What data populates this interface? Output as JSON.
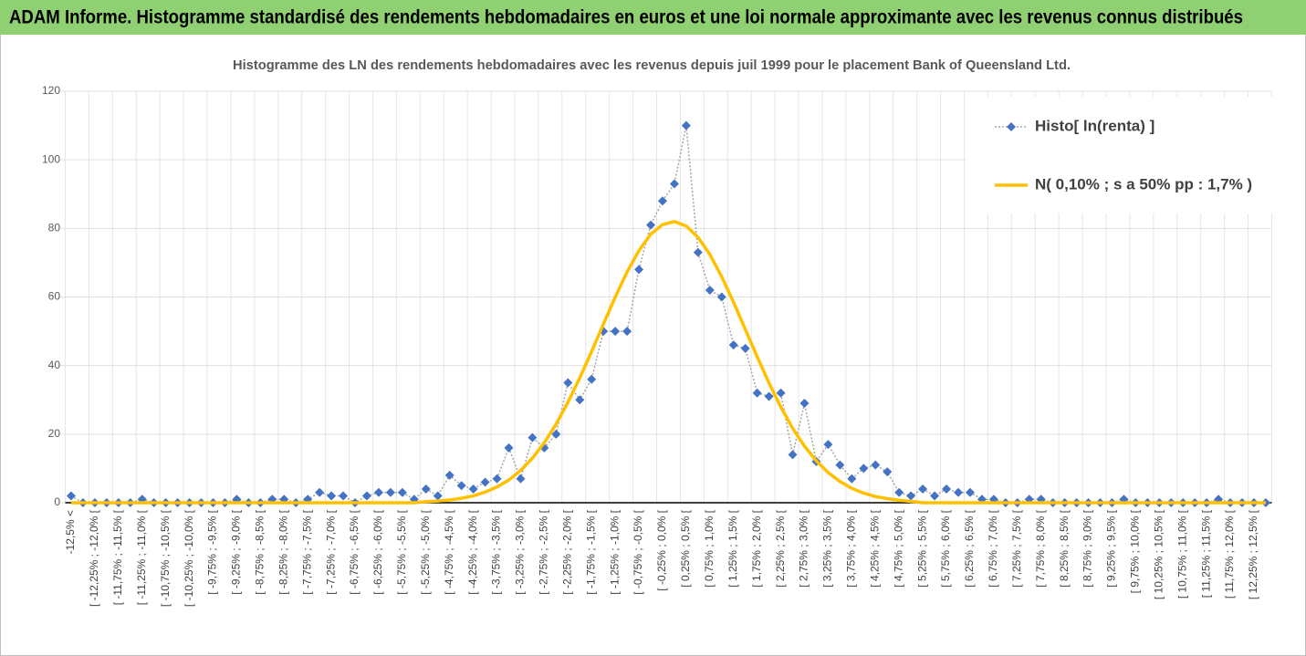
{
  "chart_data": {
    "type": "line",
    "title": "ADAM Informe. Histogramme standardisé des rendements hebdomadaires en euros et une loi normale approximante avec les revenus connus distribués",
    "subtitle": "Histogramme des LN des rendements hebdomadaires avec les revenus depuis juil 1999 pour le placement Bank of Queensland Ltd.",
    "categories": [
      "-12,5% <",
      null,
      "[ -12,25% ; -12,0% [",
      null,
      "[ -11,75% ; -11,5% [",
      null,
      "[ -11,25% ; -11,0% [",
      null,
      "[ -10,75% ; -10,5% [",
      null,
      "[ -10,25% ; -10,0% [",
      null,
      "[ -9,75% ; -9,5% [",
      null,
      "[ -9,25% ; -9,0% [",
      null,
      "[ -8,75% ; -8,5% [",
      null,
      "[ -8,25% ; -8,0% [",
      null,
      "[ -7,75% ; -7,5% [",
      null,
      "[ -7,25% ; -7,0% [",
      null,
      "[ -6,75% ; -6,5% [",
      null,
      "[ -6,25% ; -6,0% [",
      null,
      "[ -5,75% ; -5,5% [",
      null,
      "[ -5,25% ; -5,0% [",
      null,
      "[ -4,75% ; -4,5% [",
      null,
      "[ -4,25% ; -4,0% [",
      null,
      "[ -3,75% ; -3,5% [",
      null,
      "[ -3,25% ; -3,0% [",
      null,
      "[ -2,75% ; -2,5% [",
      null,
      "[ -2,25% ; -2,0% [",
      null,
      "[ -1,75% ; -1,5% [",
      null,
      "[ -1,25% ; -1,0% [",
      null,
      "[ -0,75% ; -0,5% [",
      null,
      "[ -0,25% ; 0,0% [",
      null,
      "[ 0,25% ; 0,5% [",
      null,
      "[ 0,75% ; 1,0% [",
      null,
      "[ 1,25% ; 1,5% [",
      null,
      "[ 1,75% ; 2,0% [",
      null,
      "[ 2,25% ; 2,5% [",
      null,
      "[ 2,75% ; 3,0% [",
      null,
      "[ 3,25% ; 3,5% [",
      null,
      "[ 3,75% ; 4,0% [",
      null,
      "[ 4,25% ; 4,5% [",
      null,
      "[ 4,75% ; 5,0% [",
      null,
      "[ 5,25% ; 5,5% [",
      null,
      "[ 5,75% ; 6,0% [",
      null,
      "[ 6,25% ; 6,5% [",
      null,
      "[ 6,75% ; 7,0% [",
      null,
      "[ 7,25% ; 7,5% [",
      null,
      "[ 7,75% ; 8,0% [",
      null,
      "[ 8,25% ; 8,5% [",
      null,
      "[ 8,75% ; 9,0% [",
      null,
      "[ 9,25% ; 9,5% [",
      null,
      "[ 9,75% ; 10,0% [",
      null,
      "[ 10,25% ; 10,5% [",
      null,
      "[ 10,75% ; 11,0% [",
      null,
      "[ 11,25% ; 11,5% [",
      null,
      "[ 11,75% ; 12,0% [",
      null,
      "[ 12,25% ; 12,5% [",
      null
    ],
    "series": [
      {
        "name": "Histo[ ln(renta) ]",
        "color": "#4472c4",
        "line_color": "#a5a5a5",
        "line_style": "dotted",
        "marker": "diamond",
        "values": [
          2,
          0,
          0,
          0,
          0,
          0,
          1,
          0,
          0,
          0,
          0,
          0,
          0,
          0,
          1,
          0,
          0,
          1,
          1,
          0,
          1,
          3,
          2,
          2,
          0,
          2,
          3,
          3,
          3,
          1,
          4,
          2,
          8,
          5,
          4,
          6,
          7,
          16,
          7,
          19,
          16,
          20,
          35,
          30,
          36,
          50,
          50,
          50,
          68,
          81,
          88,
          93,
          110,
          73,
          62,
          60,
          46,
          45,
          32,
          31,
          32,
          14,
          29,
          12,
          17,
          11,
          7,
          10,
          11,
          9,
          3,
          2,
          4,
          2,
          4,
          3,
          3,
          1,
          1,
          0,
          0,
          1,
          1,
          0,
          0,
          0,
          0,
          0,
          0,
          1,
          0,
          0,
          0,
          0,
          0,
          0,
          0,
          1,
          0,
          0,
          0,
          0
        ]
      },
      {
        "name": "N( 0,10% ; s a 50% pp : 1,7% )",
        "color": "#ffc000",
        "line_style": "solid",
        "values": [
          0,
          0,
          0,
          0,
          0,
          0,
          0,
          0,
          0,
          0,
          0,
          0,
          0,
          0,
          0,
          0,
          0,
          0,
          0,
          0,
          0,
          0,
          0,
          0,
          0,
          0,
          0,
          0,
          0,
          0,
          0.3,
          0.5,
          0.8,
          1.3,
          2.0,
          3.1,
          4.6,
          6.6,
          9.4,
          13.0,
          17.5,
          22.9,
          29.3,
          36.4,
          44.1,
          52.1,
          60.0,
          67.3,
          73.5,
          78.3,
          81.1,
          82.0,
          80.7,
          77.4,
          72.4,
          65.9,
          58.5,
          50.5,
          42.6,
          34.9,
          27.9,
          21.7,
          16.5,
          12.2,
          8.8,
          6.2,
          4.2,
          2.8,
          1.8,
          1.2,
          0.7,
          0.4,
          0,
          0,
          0,
          0,
          0,
          0,
          0,
          0,
          0,
          0,
          0,
          0,
          0,
          0,
          0,
          0,
          0,
          0,
          0,
          0,
          0,
          0,
          0,
          0,
          0,
          0,
          0,
          0,
          0,
          0
        ]
      }
    ],
    "ylim": [
      0,
      120
    ],
    "yticks": [
      0,
      20,
      40,
      60,
      80,
      100,
      120
    ],
    "grid": true,
    "legend": "top-right"
  }
}
